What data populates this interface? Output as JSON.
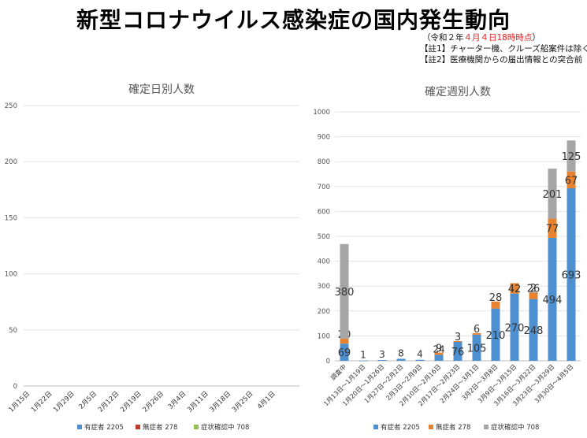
{
  "title": "新型コロナウイルス感染症の国内発生動向",
  "as_of": {
    "open": "（令和２年",
    "date": "４月４日18時時点",
    "close": "）"
  },
  "notes": [
    "【註1】チャーター機、クルーズ船案件は除く",
    "【註2】医療機関からの届出情報との突合前"
  ],
  "colors": {
    "symptomatic": "#4e8fd0",
    "asymptomatic": "#e8822f",
    "confirming": "#a6a6a6",
    "daily_asym": "#c0392b",
    "daily_conf": "#92c050"
  },
  "chart_data": [
    {
      "type": "bar",
      "stacked": true,
      "title": "確定日別人数",
      "ylim": [
        0,
        250
      ],
      "yticks": [
        0,
        50,
        100,
        150,
        200,
        250
      ],
      "categories": [
        "1月15日",
        "1月22日",
        "1月29日",
        "2月5日",
        "2月12日",
        "2月19日",
        "2月26日",
        "3月4日",
        "3月11日",
        "3月18日",
        "3月25日",
        "4月1日"
      ],
      "series": [
        {
          "name": "有症者 2205"
        },
        {
          "name": "無症者 278"
        },
        {
          "name": "症状確認中 708"
        }
      ],
      "legend_position": "bottom",
      "grid": true
    },
    {
      "type": "bar",
      "stacked": true,
      "title": "確定週別人数",
      "ylim": [
        0,
        1000
      ],
      "yticks": [
        0,
        100,
        200,
        300,
        400,
        500,
        600,
        700,
        800,
        900,
        1000
      ],
      "categories": [
        "調査中",
        "1月13日～1月19日",
        "1月20日～1月26日",
        "1月27日～2月2日",
        "2月3日～2月9日",
        "2月10日～2月16日",
        "2月17日～2月23日",
        "2月24日～3月1日",
        "3月2日～3月8日",
        "3月9日～3月15日",
        "3月16日～3月22日",
        "3月23日～3月29日",
        "3月30日～4月5日"
      ],
      "series": [
        {
          "name": "有症者 2205",
          "values": [
            69,
            1,
            3,
            8,
            4,
            24,
            76,
            105,
            210,
            270,
            248,
            494,
            693
          ]
        },
        {
          "name": "無症者 278",
          "values": [
            20,
            0,
            0,
            0,
            0,
            9,
            3,
            6,
            28,
            42,
            26,
            77,
            67
          ]
        },
        {
          "name": "症状確認中 708",
          "values": [
            380,
            0,
            0,
            0,
            0,
            0,
            0,
            0,
            0,
            0,
            2,
            201,
            125
          ]
        }
      ],
      "legend_position": "bottom",
      "grid": true
    }
  ]
}
